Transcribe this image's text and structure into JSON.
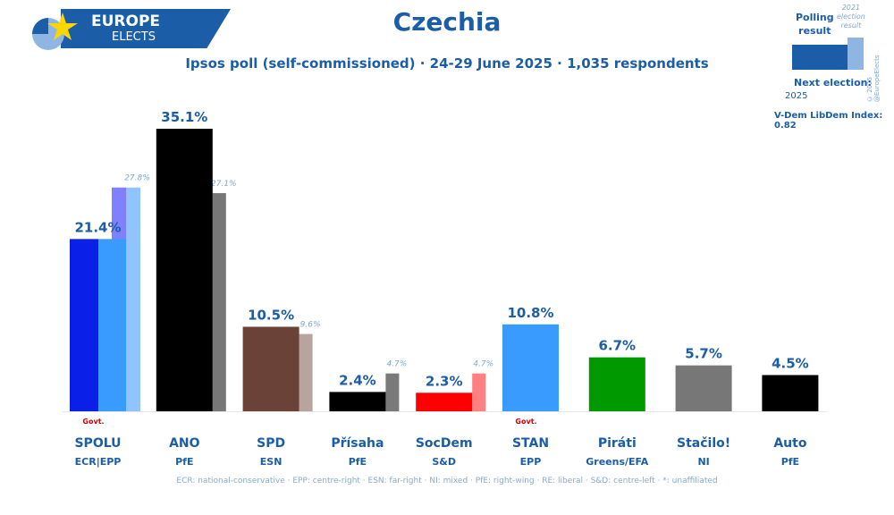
{
  "header": {
    "logo_line1": "EUROPE",
    "logo_line2": "ELECTS",
    "title": "Czechia",
    "subtitle": "Ipsos poll (self-commissioned) · 24-29 June 2025 · 1,035 respondents"
  },
  "legend": {
    "polling_line1": "Polling",
    "polling_line2": "result",
    "prev_line1": "2021",
    "prev_line2": "election",
    "prev_line3": "result",
    "copyright": "© 2025 @EuropeElects",
    "next_election_label": "Next election:",
    "next_election_year": "2025",
    "vdem": "V-Dem LibDem Index: 0.82"
  },
  "footer": "ECR: national-conservative · EPP: centre-right · ESN: far-right · NI: mixed · PfE: right-wing · RE: liberal · S&D: centre-left · *: unaffiliated",
  "chart_data": {
    "type": "bar",
    "ylim": [
      0,
      35.1
    ],
    "categories": [
      "SPOLU",
      "ANO",
      "SPD",
      "Přísaha",
      "SocDem",
      "STAN",
      "Piráti",
      "Stačilo!",
      "Auto"
    ],
    "groups": [
      "ECR|EPP",
      "PfE",
      "ESN",
      "PfE",
      "S&D",
      "EPP",
      "Greens/EFA",
      "NI",
      "PfE"
    ],
    "series": [
      {
        "name": "Polling result",
        "values": [
          21.4,
          35.1,
          10.5,
          2.4,
          2.3,
          10.8,
          6.7,
          5.7,
          4.5
        ],
        "labels": [
          "21.4%",
          "35.1%",
          "10.5%",
          "2.4%",
          "2.3%",
          "10.8%",
          "6.7%",
          "5.7%",
          "4.5%"
        ]
      },
      {
        "name": "2021 election result",
        "values": [
          27.8,
          27.1,
          9.6,
          4.7,
          4.7,
          null,
          null,
          null,
          null
        ],
        "labels": [
          "27.8%",
          "27.1%",
          "9.6%",
          "4.7%",
          "4.7%",
          "",
          "",
          "",
          ""
        ]
      }
    ],
    "govt_marker": "Govt.",
    "govt_flags": [
      true,
      false,
      false,
      false,
      false,
      true,
      false,
      false,
      false
    ],
    "colors": [
      "#0a1fe8",
      "#000000",
      "#6b4238",
      "#000000",
      "#ff0000",
      "#3a9bff",
      "#009a00",
      "#777777",
      "#000000"
    ],
    "prev_colors": [
      "#8fc4ff",
      "#777777",
      "#b8a49f",
      "#7a7a7a",
      "#ff8080",
      "",
      "",
      "",
      ""
    ],
    "spolu_split": {
      "total": 21.4,
      "parts": [
        {
          "color": "#0a1fe8"
        },
        {
          "color": "#3a9bff"
        }
      ],
      "prev_parts": [
        {
          "color": "#8080ff"
        },
        {
          "color": "#8fc4ff"
        }
      ]
    }
  }
}
